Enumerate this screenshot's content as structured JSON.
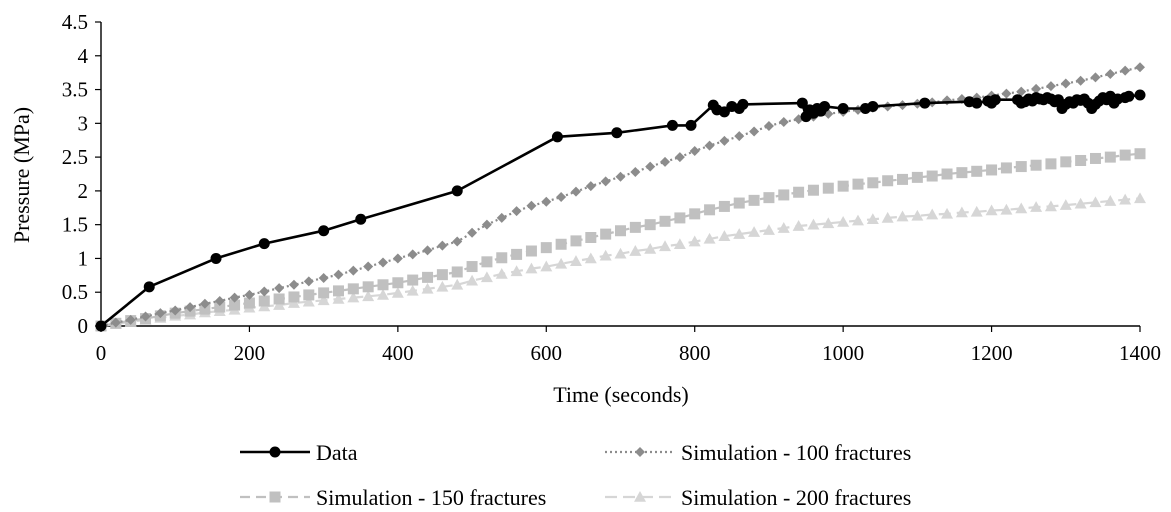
{
  "chart_data": {
    "type": "line",
    "title": "",
    "xlabel": "Time (seconds)",
    "ylabel": "Pressure (MPa)",
    "xlim": [
      0,
      1400
    ],
    "ylim": [
      0,
      4.5
    ],
    "x_ticks": [
      "0",
      "200",
      "400",
      "600",
      "800",
      "1000",
      "1200",
      "1400"
    ],
    "y_ticks": [
      "0",
      "0.5",
      "1",
      "1.5",
      "2",
      "2.5",
      "3",
      "3.5",
      "4",
      "4.5"
    ],
    "grid": false,
    "legend_position": "bottom",
    "series": [
      {
        "name": "Data",
        "color": "#000000",
        "marker": "circle",
        "line": "solid",
        "x": [
          0,
          65,
          155,
          220,
          300,
          350,
          480,
          615,
          695,
          770,
          795,
          825,
          830,
          840,
          850,
          860,
          865,
          945,
          950,
          955,
          960,
          965,
          970,
          975,
          1000,
          1030,
          1040,
          1110,
          1170,
          1180,
          1195,
          1200,
          1205,
          1235,
          1240,
          1245,
          1250,
          1255,
          1260,
          1265,
          1270,
          1275,
          1280,
          1285,
          1290,
          1295,
          1300,
          1305,
          1310,
          1315,
          1320,
          1325,
          1330,
          1335,
          1340,
          1345,
          1350,
          1355,
          1360,
          1365,
          1370,
          1380,
          1385,
          1400
        ],
        "y": [
          0,
          0.58,
          1.0,
          1.22,
          1.41,
          1.58,
          2.0,
          2.8,
          2.86,
          2.97,
          2.97,
          3.27,
          3.2,
          3.17,
          3.25,
          3.22,
          3.28,
          3.3,
          3.1,
          3.2,
          3.15,
          3.22,
          3.18,
          3.25,
          3.22,
          3.22,
          3.25,
          3.3,
          3.32,
          3.3,
          3.33,
          3.3,
          3.35,
          3.35,
          3.3,
          3.32,
          3.36,
          3.33,
          3.38,
          3.36,
          3.35,
          3.38,
          3.36,
          3.32,
          3.35,
          3.22,
          3.28,
          3.32,
          3.3,
          3.35,
          3.34,
          3.36,
          3.3,
          3.22,
          3.28,
          3.33,
          3.38,
          3.35,
          3.4,
          3.3,
          3.36,
          3.38,
          3.4,
          3.42
        ]
      },
      {
        "name": "Simulation - 100 fractures",
        "color": "#8c8c8c",
        "marker": "diamond",
        "line": "dotted",
        "x": [
          0,
          20,
          40,
          60,
          80,
          100,
          120,
          140,
          160,
          180,
          200,
          220,
          240,
          260,
          280,
          300,
          320,
          340,
          360,
          380,
          400,
          420,
          440,
          460,
          480,
          500,
          520,
          540,
          560,
          580,
          600,
          620,
          640,
          660,
          680,
          700,
          720,
          740,
          760,
          780,
          800,
          820,
          840,
          860,
          880,
          900,
          920,
          940,
          960,
          980,
          1000,
          1020,
          1040,
          1060,
          1080,
          1100,
          1120,
          1140,
          1160,
          1180,
          1200,
          1220,
          1240,
          1260,
          1280,
          1300,
          1320,
          1340,
          1360,
          1380,
          1400
        ],
        "y": [
          0,
          0.05,
          0.09,
          0.14,
          0.19,
          0.23,
          0.28,
          0.33,
          0.37,
          0.42,
          0.46,
          0.51,
          0.56,
          0.61,
          0.66,
          0.71,
          0.76,
          0.82,
          0.88,
          0.94,
          1.0,
          1.06,
          1.12,
          1.19,
          1.25,
          1.38,
          1.5,
          1.6,
          1.7,
          1.78,
          1.84,
          1.91,
          1.99,
          2.07,
          2.14,
          2.21,
          2.28,
          2.36,
          2.43,
          2.5,
          2.59,
          2.67,
          2.74,
          2.81,
          2.88,
          2.96,
          3.02,
          3.06,
          3.1,
          3.14,
          3.17,
          3.2,
          3.23,
          3.25,
          3.27,
          3.29,
          3.31,
          3.34,
          3.36,
          3.38,
          3.41,
          3.44,
          3.47,
          3.51,
          3.55,
          3.59,
          3.63,
          3.68,
          3.73,
          3.78,
          3.83
        ]
      },
      {
        "name": "Simulation - 150 fractures",
        "color": "#c0c0c0",
        "marker": "square",
        "line": "dashed",
        "x": [
          0,
          20,
          40,
          60,
          80,
          100,
          120,
          140,
          160,
          180,
          200,
          220,
          240,
          260,
          280,
          300,
          320,
          340,
          360,
          380,
          400,
          420,
          440,
          460,
          480,
          500,
          520,
          540,
          560,
          580,
          600,
          620,
          640,
          660,
          680,
          700,
          720,
          740,
          760,
          780,
          800,
          820,
          840,
          860,
          880,
          900,
          920,
          940,
          960,
          980,
          1000,
          1020,
          1040,
          1060,
          1080,
          1100,
          1120,
          1140,
          1160,
          1180,
          1200,
          1220,
          1240,
          1260,
          1280,
          1300,
          1320,
          1340,
          1360,
          1380,
          1400
        ],
        "y": [
          0,
          0.04,
          0.08,
          0.11,
          0.15,
          0.19,
          0.22,
          0.25,
          0.28,
          0.31,
          0.34,
          0.37,
          0.4,
          0.43,
          0.46,
          0.49,
          0.52,
          0.55,
          0.58,
          0.61,
          0.64,
          0.68,
          0.72,
          0.76,
          0.8,
          0.88,
          0.95,
          1.01,
          1.06,
          1.11,
          1.16,
          1.21,
          1.26,
          1.31,
          1.36,
          1.41,
          1.46,
          1.5,
          1.55,
          1.6,
          1.66,
          1.72,
          1.77,
          1.82,
          1.86,
          1.9,
          1.94,
          1.98,
          2.01,
          2.04,
          2.07,
          2.1,
          2.12,
          2.15,
          2.17,
          2.2,
          2.22,
          2.25,
          2.27,
          2.29,
          2.31,
          2.34,
          2.36,
          2.38,
          2.4,
          2.43,
          2.45,
          2.48,
          2.5,
          2.53,
          2.55
        ]
      },
      {
        "name": "Simulation - 200 fractures",
        "color": "#d6d6d6",
        "marker": "triangle",
        "line": "dashed",
        "x": [
          0,
          20,
          40,
          60,
          80,
          100,
          120,
          140,
          160,
          180,
          200,
          220,
          240,
          260,
          280,
          300,
          320,
          340,
          360,
          380,
          400,
          420,
          440,
          460,
          480,
          500,
          520,
          540,
          560,
          580,
          600,
          620,
          640,
          660,
          680,
          700,
          720,
          740,
          760,
          780,
          800,
          820,
          840,
          860,
          880,
          900,
          920,
          940,
          960,
          980,
          1000,
          1020,
          1040,
          1060,
          1080,
          1100,
          1120,
          1140,
          1160,
          1180,
          1200,
          1220,
          1240,
          1260,
          1280,
          1300,
          1320,
          1340,
          1360,
          1380,
          1400
        ],
        "y": [
          0,
          0.03,
          0.06,
          0.09,
          0.12,
          0.15,
          0.17,
          0.2,
          0.22,
          0.24,
          0.27,
          0.29,
          0.31,
          0.34,
          0.36,
          0.38,
          0.4,
          0.42,
          0.44,
          0.46,
          0.49,
          0.52,
          0.55,
          0.58,
          0.61,
          0.67,
          0.72,
          0.77,
          0.81,
          0.85,
          0.88,
          0.92,
          0.96,
          1.0,
          1.04,
          1.07,
          1.11,
          1.14,
          1.18,
          1.21,
          1.25,
          1.29,
          1.33,
          1.36,
          1.39,
          1.42,
          1.45,
          1.48,
          1.5,
          1.52,
          1.54,
          1.56,
          1.58,
          1.6,
          1.62,
          1.63,
          1.65,
          1.66,
          1.68,
          1.69,
          1.71,
          1.72,
          1.74,
          1.76,
          1.77,
          1.79,
          1.81,
          1.83,
          1.85,
          1.87,
          1.89
        ]
      }
    ]
  }
}
